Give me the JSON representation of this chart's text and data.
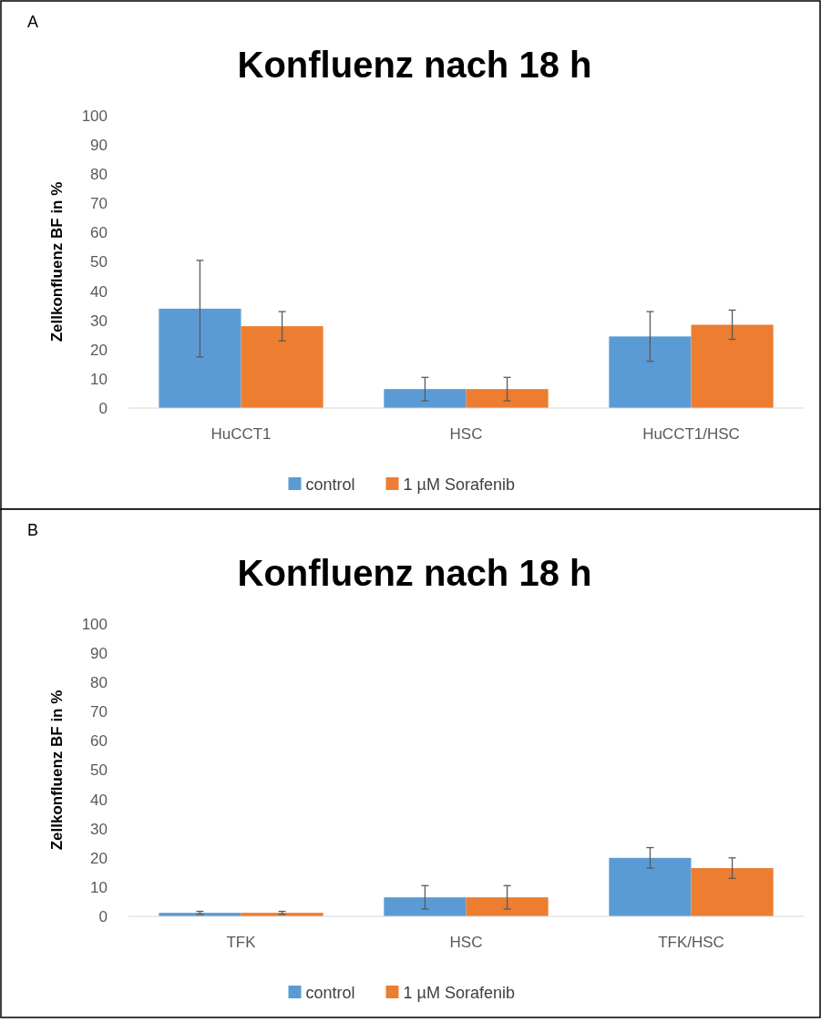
{
  "chart_data": [
    {
      "type": "bar",
      "title": "Konfluenz nach 18 h",
      "ylabel": "Zellkonfluenz BF in %",
      "annotations": [
        "A"
      ],
      "categories": [
        "HuCCT1",
        "HSC",
        "HuCCT1/HSC"
      ],
      "series": [
        {
          "name": "control",
          "color": "#5b9bd5",
          "values": [
            34,
            6.5,
            24.5
          ],
          "errors": [
            16.5,
            4,
            8.5
          ]
        },
        {
          "name": "1 µM Sorafenib",
          "color": "#ed7d31",
          "values": [
            28,
            6.5,
            28.5
          ],
          "errors": [
            5,
            4,
            5
          ]
        }
      ],
      "ylim": [
        0,
        100
      ],
      "yticks": [
        0,
        10,
        20,
        30,
        40,
        50,
        60,
        70,
        80,
        90,
        100
      ],
      "legend": "bottom"
    },
    {
      "type": "bar",
      "title": "Konfluenz nach 18 h",
      "ylabel": "Zellkonfluenz BF in %",
      "annotations": [
        "B"
      ],
      "categories": [
        "TFK",
        "HSC",
        "TFK/HSC"
      ],
      "series": [
        {
          "name": "control",
          "color": "#5b9bd5",
          "values": [
            1.2,
            6.5,
            20
          ],
          "errors": [
            0.5,
            4,
            3.5
          ]
        },
        {
          "name": "1 µM Sorafenib",
          "color": "#ed7d31",
          "values": [
            1.2,
            6.5,
            16.5
          ],
          "errors": [
            0.5,
            4,
            3.5
          ]
        }
      ],
      "ylim": [
        0,
        100
      ],
      "yticks": [
        0,
        10,
        20,
        30,
        40,
        50,
        60,
        70,
        80,
        90,
        100
      ],
      "legend": "bottom"
    }
  ]
}
